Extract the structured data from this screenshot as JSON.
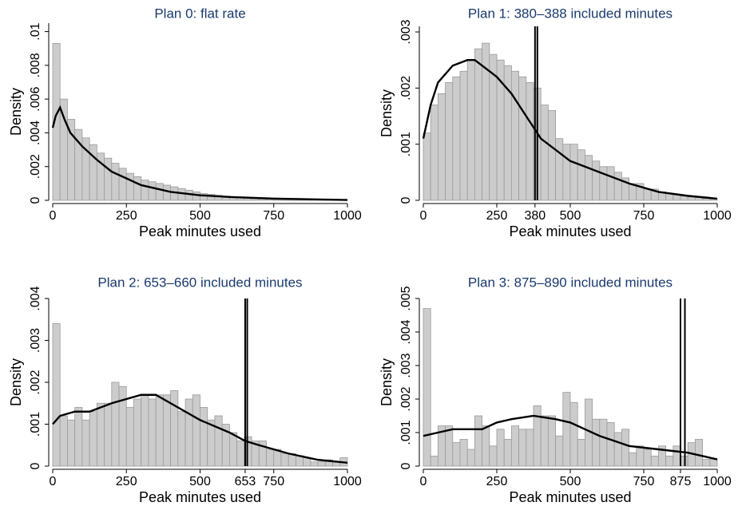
{
  "chart_data": [
    {
      "type": "histogram",
      "title": "Plan 0: flat rate",
      "xlabel": "Peak minutes used",
      "ylabel": "Density",
      "color": "#cccccc",
      "line_color": "#000000",
      "bins": [
        0,
        25,
        50,
        75,
        100,
        125,
        150,
        175,
        200,
        225,
        250,
        275,
        300,
        325,
        350,
        375,
        400,
        425,
        450,
        475,
        500,
        525,
        550,
        575,
        600,
        625,
        650,
        675,
        700,
        725,
        750,
        775,
        800,
        825,
        850,
        875,
        900,
        925,
        950,
        975,
        1000
      ],
      "values": [
        0.0093,
        0.006,
        0.0048,
        0.0042,
        0.0037,
        0.0033,
        0.0028,
        0.0025,
        0.0022,
        0.0019,
        0.0016,
        0.0014,
        0.0012,
        0.0011,
        0.001,
        0.0009,
        0.0008,
        0.0007,
        0.0006,
        0.0005,
        0.0004,
        0.00035,
        0.0003,
        0.00025,
        0.0002,
        0.0002,
        0.00015,
        0.00012,
        0.0001,
        0.0001,
        8e-05,
        6e-05,
        5e-05,
        4e-05,
        3e-05,
        3e-05,
        2e-05,
        2e-05,
        1e-05,
        1e-05
      ],
      "density": {
        "x": [
          0,
          10,
          25,
          40,
          60,
          100,
          150,
          200,
          250,
          300,
          400,
          500,
          600,
          750,
          1000
        ],
        "values": [
          0.0043,
          0.005,
          0.0055,
          0.0048,
          0.004,
          0.0032,
          0.0024,
          0.0017,
          0.0013,
          0.0009,
          0.0005,
          0.0003,
          0.0002,
          0.0001,
          2e-05
        ]
      },
      "ref_lines": [],
      "xlim": [
        0,
        1000
      ],
      "ylim": [
        0,
        0.0105
      ],
      "xticks": [
        0,
        250,
        500,
        750,
        1000
      ],
      "yticks": [
        0,
        {
          "value": 0.002,
          "label": ".002"
        },
        {
          "value": 0.004,
          "label": ".004"
        },
        {
          "value": 0.006,
          "label": ".006"
        },
        {
          "value": 0.008,
          "label": ".008"
        },
        {
          "value": 0.01,
          "label": ".01"
        }
      ]
    },
    {
      "type": "histogram",
      "title": "Plan 1: 380–388 included minutes",
      "xlabel": "Peak minutes used",
      "ylabel": "Density",
      "color": "#cccccc",
      "line_color": "#000000",
      "bins": [
        0,
        25,
        50,
        75,
        100,
        125,
        150,
        175,
        200,
        225,
        250,
        275,
        300,
        325,
        350,
        375,
        400,
        425,
        450,
        475,
        500,
        525,
        550,
        575,
        600,
        625,
        650,
        675,
        700,
        725,
        750,
        775,
        800,
        825,
        850,
        875,
        900,
        925,
        950,
        975,
        1000
      ],
      "values": [
        0.0012,
        0.0017,
        0.0019,
        0.0021,
        0.0022,
        0.0023,
        0.0025,
        0.0027,
        0.0028,
        0.0026,
        0.0025,
        0.0024,
        0.0023,
        0.0022,
        0.0021,
        0.002,
        0.0017,
        0.0016,
        0.0011,
        0.001,
        0.001,
        0.0009,
        0.0008,
        0.0007,
        0.0006,
        0.0006,
        0.0005,
        0.0004,
        0.0003,
        0.0003,
        0.0002,
        0.0002,
        0.00015,
        0.00012,
        0.0001,
        8e-05,
        6e-05,
        5e-05,
        3e-05,
        2e-05
      ],
      "density": {
        "x": [
          0,
          25,
          50,
          100,
          150,
          175,
          200,
          250,
          300,
          350,
          400,
          450,
          500,
          550,
          600,
          700,
          800,
          900,
          1000
        ],
        "values": [
          0.0011,
          0.0017,
          0.0021,
          0.0024,
          0.0025,
          0.0025,
          0.0024,
          0.0022,
          0.0019,
          0.0015,
          0.0011,
          0.0009,
          0.0007,
          0.0006,
          0.0005,
          0.0003,
          0.00015,
          8e-05,
          3e-05
        ]
      },
      "ref_lines": [
        380,
        388
      ],
      "xlim": [
        0,
        1000
      ],
      "ylim": [
        0,
        0.0031
      ],
      "xticks": [
        0,
        250,
        380,
        500,
        750,
        1000
      ],
      "yticks": [
        0,
        {
          "value": 0.001,
          "label": ".001"
        },
        {
          "value": 0.002,
          "label": ".002"
        },
        {
          "value": 0.003,
          "label": ".003"
        }
      ]
    },
    {
      "type": "histogram",
      "title": "Plan 2: 653–660 included minutes",
      "xlabel": "Peak minutes used",
      "ylabel": "Density",
      "color": "#cccccc",
      "line_color": "#000000",
      "bins": [
        0,
        25,
        50,
        75,
        100,
        125,
        150,
        175,
        200,
        225,
        250,
        275,
        300,
        325,
        350,
        375,
        400,
        425,
        450,
        475,
        500,
        525,
        550,
        575,
        600,
        625,
        650,
        675,
        700,
        725,
        750,
        775,
        800,
        825,
        850,
        875,
        900,
        925,
        950,
        975,
        1000
      ],
      "values": [
        0.0034,
        0.0012,
        0.0011,
        0.0014,
        0.0011,
        0.0013,
        0.0015,
        0.0015,
        0.002,
        0.0019,
        0.0014,
        0.0016,
        0.0017,
        0.0016,
        0.0017,
        0.0017,
        0.0018,
        0.0013,
        0.0016,
        0.0017,
        0.0014,
        0.0011,
        0.0012,
        0.001,
        0.0008,
        0.0006,
        0.0007,
        0.0006,
        0.0006,
        0.0004,
        0.0004,
        0.0003,
        0.0003,
        0.00025,
        0.0002,
        0.0001,
        0.0001,
        0.00015,
        0.0001,
        0.0002
      ],
      "density": {
        "x": [
          0,
          25,
          75,
          125,
          200,
          300,
          350,
          400,
          500,
          600,
          653,
          700,
          800,
          900,
          1000
        ],
        "values": [
          0.001,
          0.0012,
          0.0013,
          0.0013,
          0.0015,
          0.0017,
          0.0017,
          0.0015,
          0.0011,
          0.0008,
          0.0006,
          0.0005,
          0.0003,
          0.00015,
          8e-05
        ]
      },
      "ref_lines": [
        653,
        660
      ],
      "xlim": [
        0,
        1000
      ],
      "ylim": [
        0,
        0.004
      ],
      "xticks": [
        0,
        250,
        500,
        653,
        750,
        1000
      ],
      "yticks": [
        0,
        {
          "value": 0.001,
          "label": ".001"
        },
        {
          "value": 0.002,
          "label": ".002"
        },
        {
          "value": 0.003,
          "label": ".003"
        },
        {
          "value": 0.004,
          "label": ".004"
        }
      ]
    },
    {
      "type": "histogram",
      "title": "Plan 3: 875–890 included minutes",
      "xlabel": "Peak minutes used",
      "ylabel": "Density",
      "color": "#cccccc",
      "line_color": "#000000",
      "bins": [
        0,
        25,
        50,
        75,
        100,
        125,
        150,
        175,
        200,
        225,
        250,
        275,
        300,
        325,
        350,
        375,
        400,
        425,
        450,
        475,
        500,
        525,
        550,
        575,
        600,
        625,
        650,
        675,
        700,
        725,
        750,
        775,
        800,
        825,
        850,
        875,
        900,
        925,
        950,
        975,
        1000
      ],
      "values": [
        0.0047,
        0.0003,
        0.0012,
        0.0012,
        0.0007,
        0.0008,
        0.0005,
        0.0015,
        0.0012,
        0.0006,
        0.0011,
        0.0008,
        0.0012,
        0.0011,
        0.0011,
        0.0018,
        0.0015,
        0.0015,
        0.0009,
        0.0022,
        0.0019,
        0.0008,
        0.002,
        0.0014,
        0.0014,
        0.0013,
        0.001,
        0.0011,
        0.0004,
        0.0006,
        0.0005,
        0.0003,
        0.0006,
        0.0003,
        0.0006,
        0.0003,
        0.0007,
        0.0008,
        0.0002,
        0.0002
      ],
      "density": {
        "x": [
          0,
          50,
          100,
          150,
          200,
          250,
          300,
          375,
          450,
          500,
          600,
          700,
          800,
          900,
          1000
        ],
        "values": [
          0.0009,
          0.001,
          0.0011,
          0.0011,
          0.0011,
          0.0013,
          0.0014,
          0.0015,
          0.0014,
          0.0013,
          0.0009,
          0.0006,
          0.0005,
          0.0004,
          0.0002
        ]
      },
      "ref_lines": [
        875,
        890
      ],
      "xlim": [
        0,
        1000
      ],
      "ylim": [
        0,
        0.005
      ],
      "xticks": [
        0,
        250,
        500,
        750,
        875,
        1000
      ],
      "yticks": [
        0,
        {
          "value": 0.001,
          "label": ".001"
        },
        {
          "value": 0.002,
          "label": ".002"
        },
        {
          "value": 0.003,
          "label": ".003"
        },
        {
          "value": 0.004,
          "label": ".004"
        },
        {
          "value": 0.005,
          "label": ".005"
        }
      ]
    }
  ]
}
